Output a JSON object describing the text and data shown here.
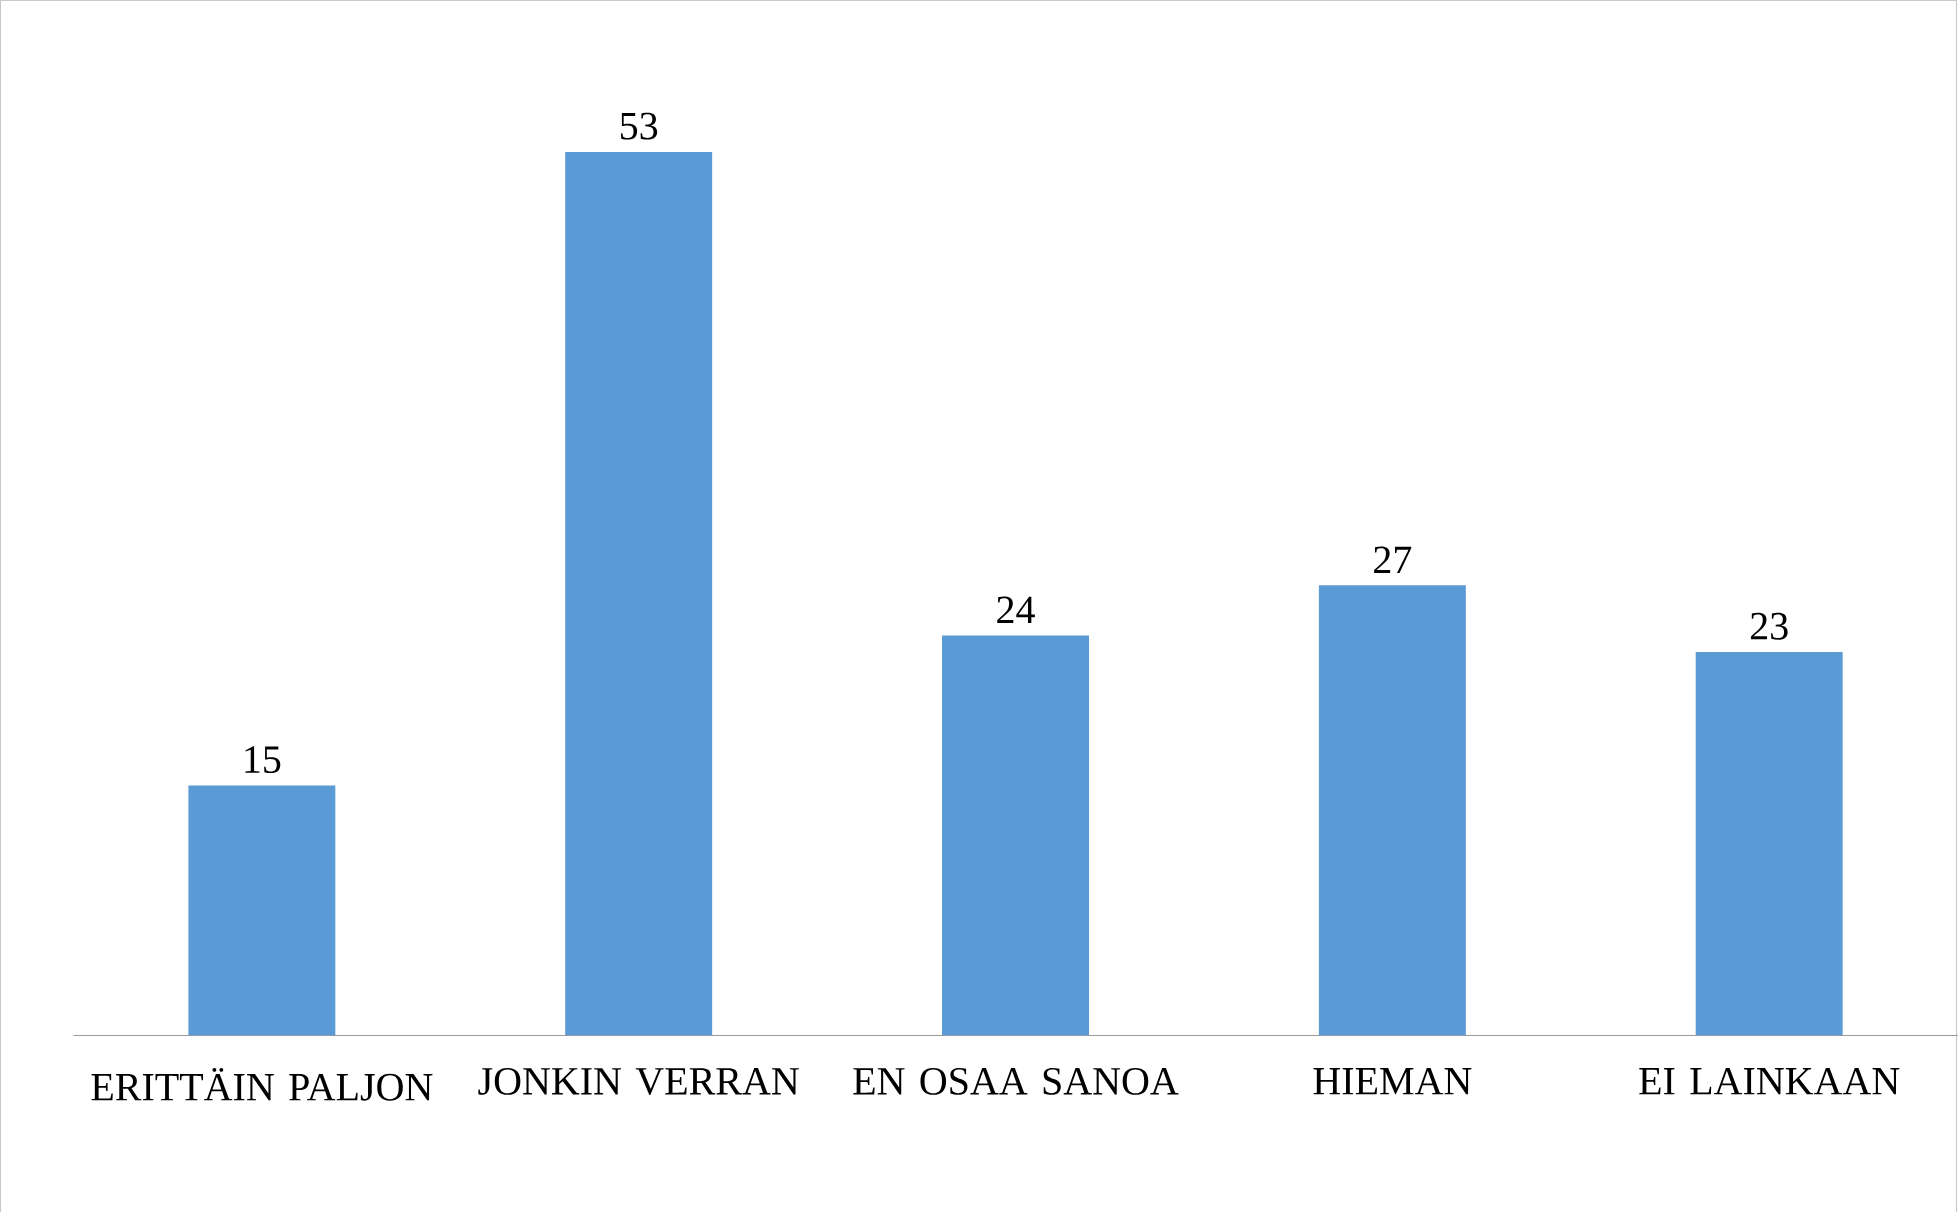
{
  "chart_data": {
    "type": "bar",
    "categories": [
      "ERITTÄIN PALJON",
      "JONKIN VERRAN",
      "EN OSAA SANOA",
      "HIEMAN",
      "EI LAINKAAN"
    ],
    "values": [
      15,
      53,
      24,
      27,
      23
    ],
    "color": "#5b9bd5",
    "data_labels": true
  }
}
